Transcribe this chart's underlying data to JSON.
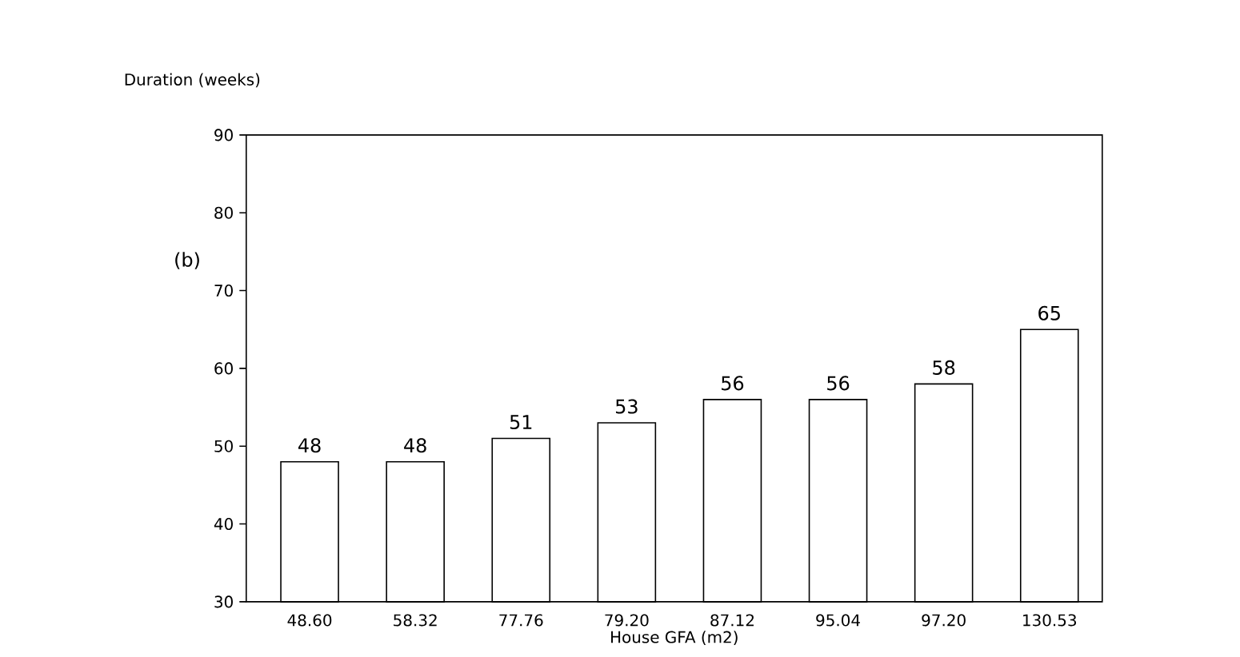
{
  "chart_data": {
    "type": "bar",
    "ylabel": "Duration (weeks)",
    "xlabel": "House GFA (m2)",
    "annotations": [
      "(b)"
    ],
    "categories": [
      "48.60",
      "58.32",
      "77.76",
      "79.20",
      "87.12",
      "95.04",
      "97.20",
      "130.53"
    ],
    "values": [
      48,
      48,
      51,
      53,
      56,
      56,
      58,
      65
    ],
    "color": "#ffffff",
    "ylim": [
      30,
      90
    ],
    "yticks": [
      30,
      40,
      50,
      60,
      70,
      80,
      90
    ],
    "data_labels": true,
    "grid": false
  }
}
